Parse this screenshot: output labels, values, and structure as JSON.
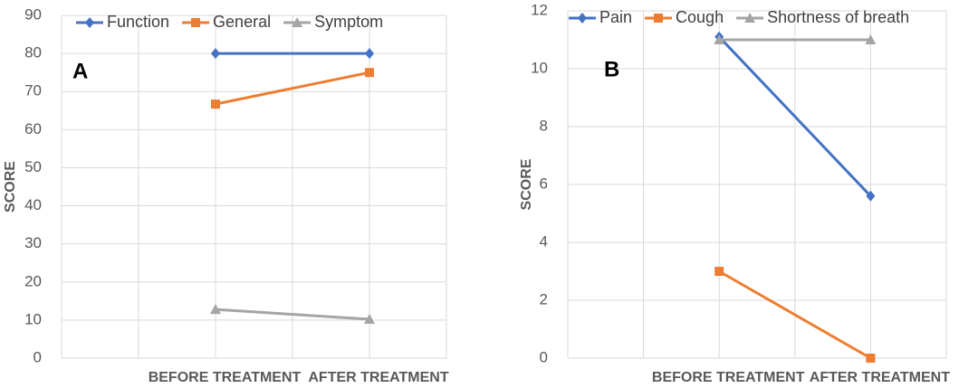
{
  "chart_data": [
    {
      "type": "line",
      "annotation": "A",
      "y_label": "SCORE",
      "categories": [
        "BEFORE TREATMENT",
        "AFTER TREATMENT"
      ],
      "series": [
        {
          "name": "Function",
          "color": "#4472c4",
          "marker": "diamond",
          "values": [
            80,
            80
          ]
        },
        {
          "name": "General",
          "color": "#ed7d31",
          "marker": "square",
          "values": [
            66.7,
            75
          ]
        },
        {
          "name": "Symptom",
          "color": "#a5a5a5",
          "marker": "triangle",
          "values": [
            12.8,
            10.2
          ]
        }
      ],
      "ylim": [
        0,
        90
      ],
      "yticks": [
        0,
        10,
        20,
        30,
        40,
        50,
        60,
        70,
        80,
        90
      ],
      "grid": true,
      "legend": "top"
    },
    {
      "type": "line",
      "annotation": "B",
      "y_label": "SCORE",
      "categories": [
        "BEFORE TREATMENT",
        "AFTER TREATMENT"
      ],
      "series": [
        {
          "name": "Pain",
          "color": "#4472c4",
          "marker": "diamond",
          "values": [
            11.1,
            5.6
          ]
        },
        {
          "name": "Cough",
          "color": "#ed7d31",
          "marker": "square",
          "values": [
            3,
            0
          ]
        },
        {
          "name": "Shortness of breath",
          "color": "#a5a5a5",
          "marker": "triangle",
          "values": [
            11,
            11
          ]
        }
      ],
      "ylim": [
        0,
        12
      ],
      "yticks": [
        0,
        2,
        4,
        6,
        8,
        10,
        12
      ],
      "grid": true,
      "legend": "top"
    }
  ]
}
